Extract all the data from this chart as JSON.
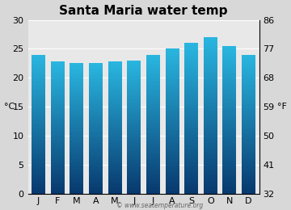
{
  "title": "Santa Maria water temp",
  "months": [
    "J",
    "F",
    "M",
    "A",
    "M",
    "J",
    "J",
    "A",
    "S",
    "O",
    "N",
    "D"
  ],
  "values": [
    24.0,
    22.8,
    22.5,
    22.5,
    22.8,
    23.0,
    24.0,
    25.1,
    26.0,
    27.0,
    25.5,
    24.0
  ],
  "ylim_c": [
    0,
    30
  ],
  "yticks_c": [
    0,
    5,
    10,
    15,
    20,
    25,
    30
  ],
  "yticks_f": [
    32,
    41,
    50,
    59,
    68,
    77,
    86
  ],
  "ylabel_left": "°C",
  "ylabel_right": "°F",
  "bar_color_top": "#29b6e0",
  "bar_color_bottom": "#08396e",
  "bg_color": "#d8d8d8",
  "plot_bg_color": "#e8e8e8",
  "title_fontsize": 11,
  "axis_fontsize": 8,
  "watermark": "© www.seatemperature.org",
  "bar_width": 0.72,
  "bar_gap_color": "#ffffff"
}
